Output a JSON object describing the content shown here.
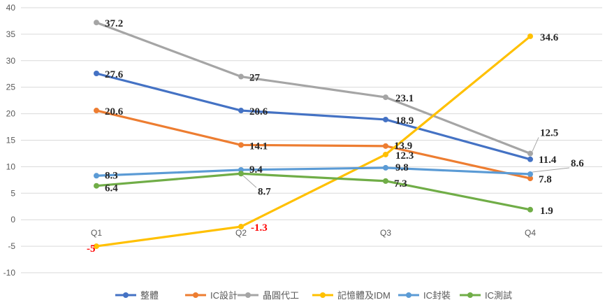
{
  "chart_data": {
    "type": "line",
    "categories": [
      "Q1",
      "Q2",
      "Q3",
      "Q4"
    ],
    "ylim": [
      -10,
      40
    ],
    "ytick_step": 5,
    "grid": true,
    "legend_position": "bottom",
    "series": [
      {
        "name": "整體",
        "color": "#4472C4",
        "values": [
          27.6,
          20.6,
          18.9,
          11.4
        ],
        "labels": [
          "27.6",
          "20.6",
          "18.9",
          "11.4"
        ],
        "label_colors": [
          "#262626",
          "#262626",
          "#262626",
          "#262626"
        ]
      },
      {
        "name": "IC設計",
        "color": "#ED7D31",
        "values": [
          20.6,
          14.1,
          13.9,
          7.8
        ],
        "labels": [
          "20.6",
          "14.1",
          "13.9",
          "7.8"
        ],
        "label_colors": [
          "#262626",
          "#262626",
          "#262626",
          "#262626"
        ]
      },
      {
        "name": "晶圓代工",
        "color": "#A5A5A5",
        "values": [
          37.2,
          27,
          23.1,
          12.5
        ],
        "labels": [
          "37.2",
          "27",
          "23.1",
          "12.5"
        ],
        "label_colors": [
          "#262626",
          "#262626",
          "#262626",
          "#262626"
        ]
      },
      {
        "name": "記憶體及IDM",
        "color": "#FFC000",
        "values": [
          -5,
          -1.3,
          12.3,
          34.6
        ],
        "labels": [
          "-5",
          "-1.3",
          "12.3",
          "34.6"
        ],
        "label_colors": [
          "#FF0000",
          "#FF0000",
          "#262626",
          "#262626"
        ]
      },
      {
        "name": "IC封裝",
        "color": "#5B9BD5",
        "values": [
          8.3,
          9.4,
          9.8,
          8.6
        ],
        "labels": [
          "8.3",
          "9.4",
          "9.8",
          "8.6"
        ],
        "label_colors": [
          "#262626",
          "#262626",
          "#262626",
          "#262626"
        ]
      },
      {
        "name": "IC測試",
        "color": "#70AD47",
        "values": [
          6.4,
          8.7,
          7.3,
          1.9
        ],
        "labels": [
          "6.4",
          "8.7",
          "7.3",
          "1.9"
        ],
        "label_colors": [
          "#262626",
          "#262626",
          "#262626",
          "#262626"
        ]
      }
    ]
  }
}
